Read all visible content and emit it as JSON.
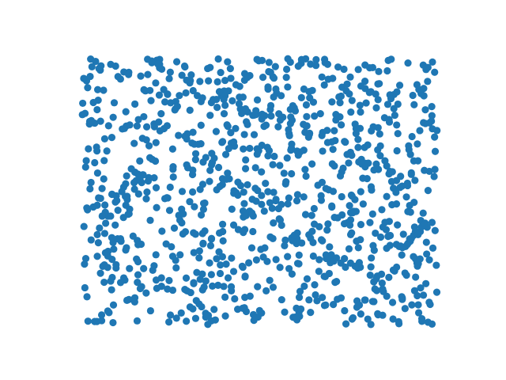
{
  "chart_data": {
    "type": "scatter",
    "title": "",
    "xlabel": "",
    "ylabel": "",
    "axes_visible": false,
    "grid": false,
    "legend": "none",
    "marker": "circle",
    "series": [
      {
        "color": "#1f77b4",
        "generator": "uniform-random",
        "count": 1000,
        "seed": 19680801
      }
    ]
  }
}
